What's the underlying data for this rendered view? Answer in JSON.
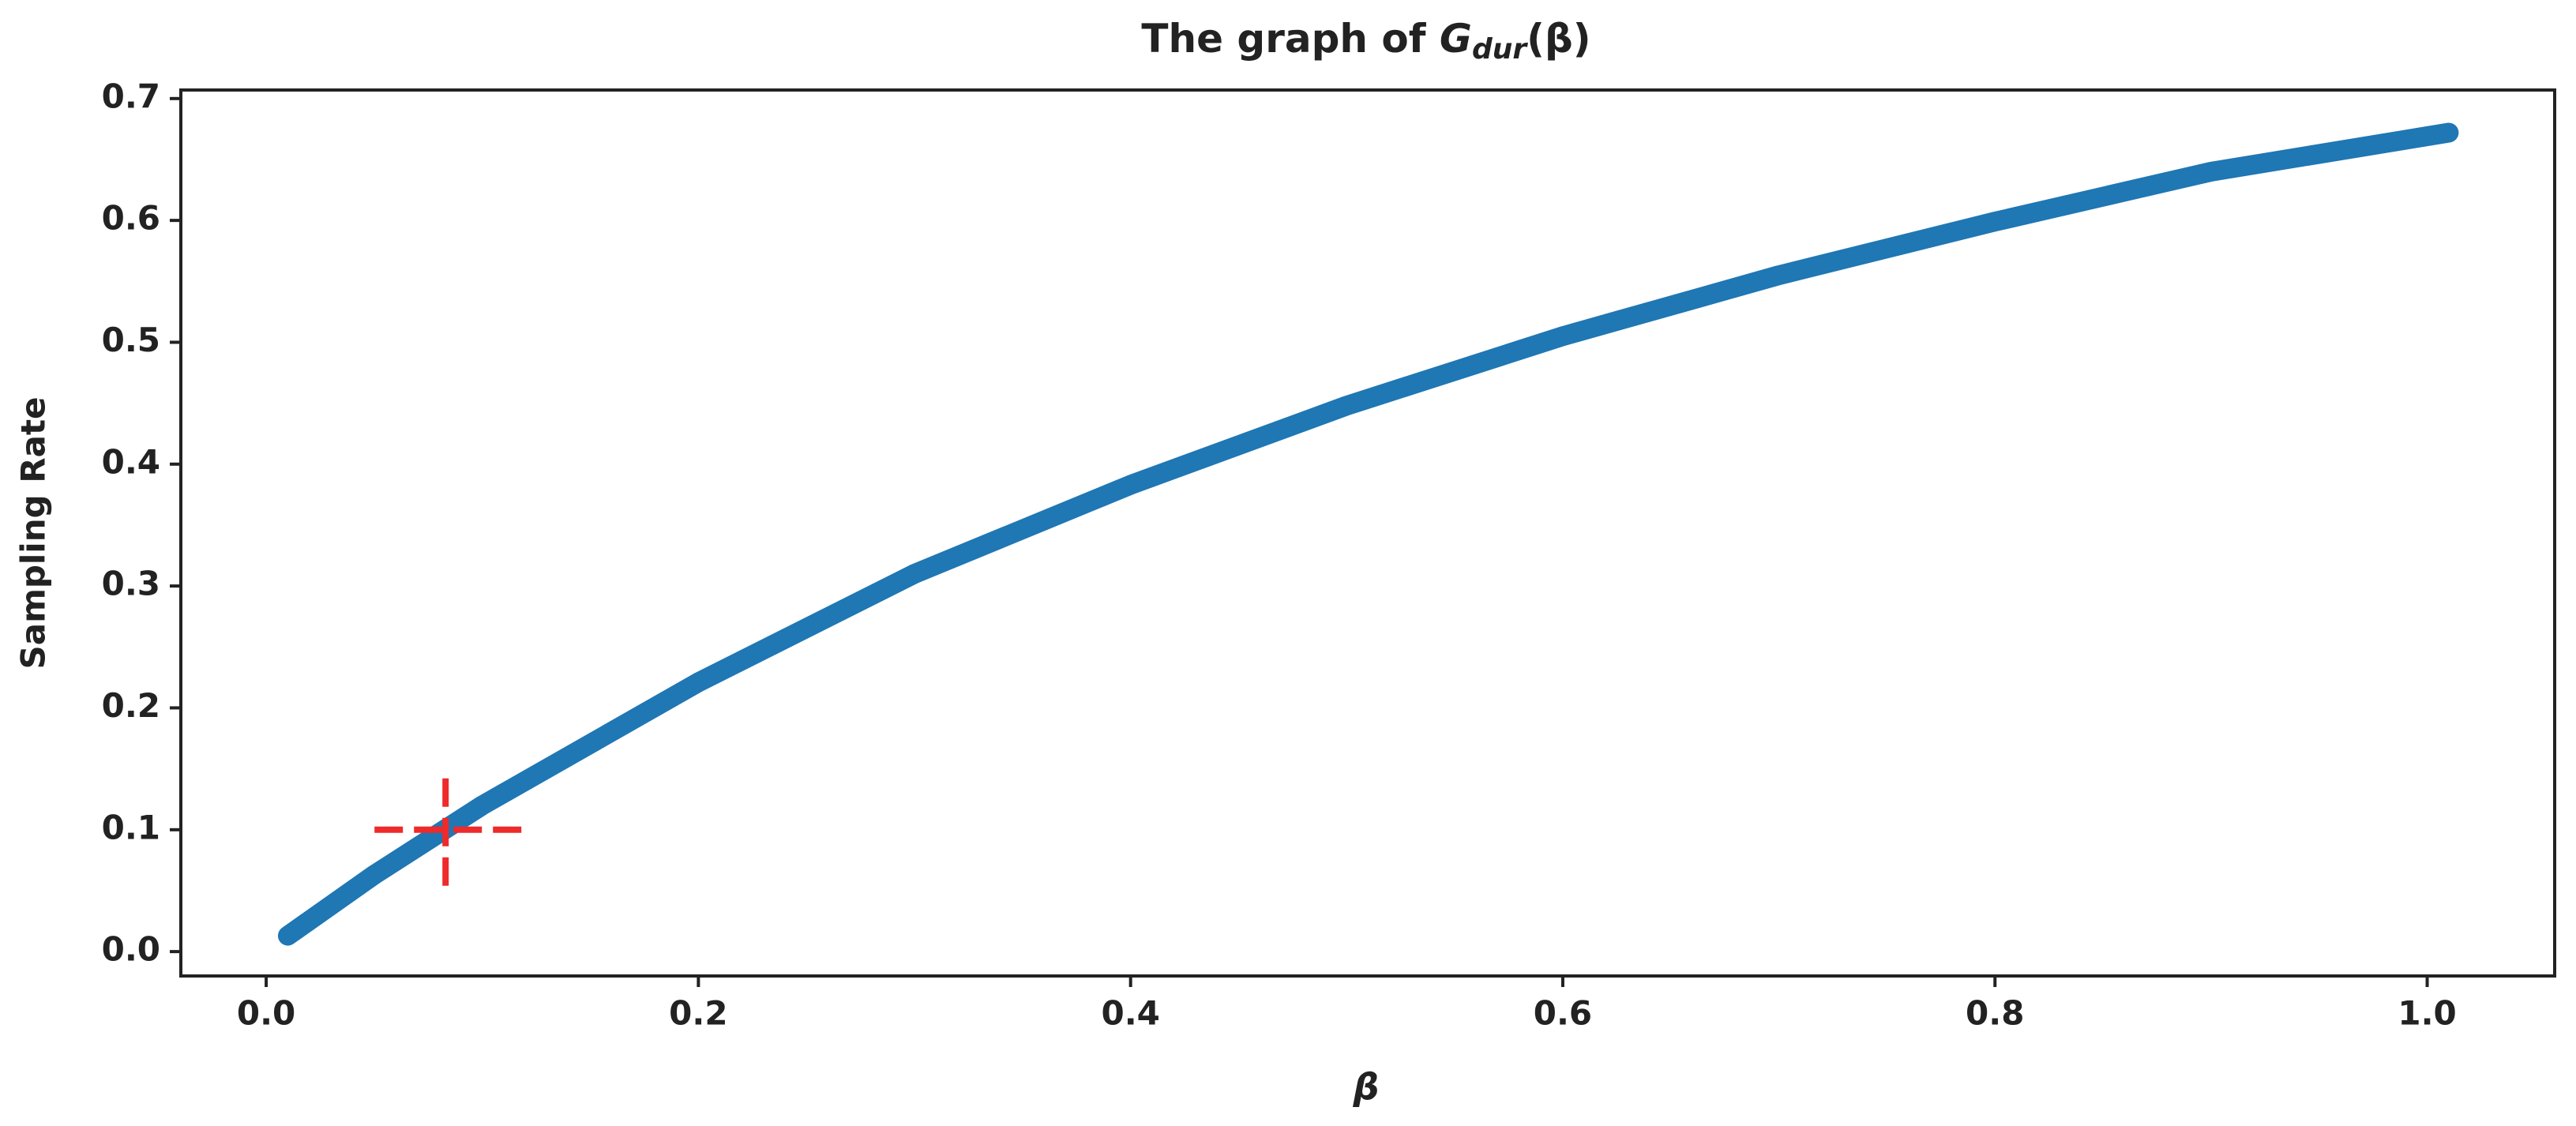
{
  "chart_data": {
    "type": "line",
    "title": {
      "prefix": "The graph of ",
      "symbol": "G",
      "subscript": "dur",
      "suffix": "(β)"
    },
    "x_label": "β",
    "y_label": "Sampling Rate",
    "x": [
      0.01,
      0.05,
      0.1,
      0.2,
      0.3,
      0.4,
      0.5,
      0.6,
      0.7,
      0.8,
      0.9,
      1.01
    ],
    "series": [
      {
        "name": "G_dur",
        "color": "#1f77b4",
        "values": [
          0.013,
          0.063,
          0.12,
          0.221,
          0.31,
          0.383,
          0.448,
          0.505,
          0.555,
          0.599,
          0.64,
          0.672
        ]
      }
    ],
    "marker": {
      "x": 0.083,
      "y": 0.1,
      "color": "#ee2a2a"
    },
    "xlim": [
      -0.0395,
      1.059
    ],
    "ylim": [
      -0.02,
      0.707
    ],
    "xticks": [
      {
        "value": 0,
        "label": "0.0"
      },
      0.2,
      0.4,
      0.6,
      0.8,
      {
        "value": 1,
        "label": "1.0"
      }
    ],
    "yticks": [
      {
        "value": 0,
        "label": "0.0"
      },
      0.1,
      0.2,
      0.3,
      0.4,
      0.5,
      0.6,
      0.7
    ]
  }
}
